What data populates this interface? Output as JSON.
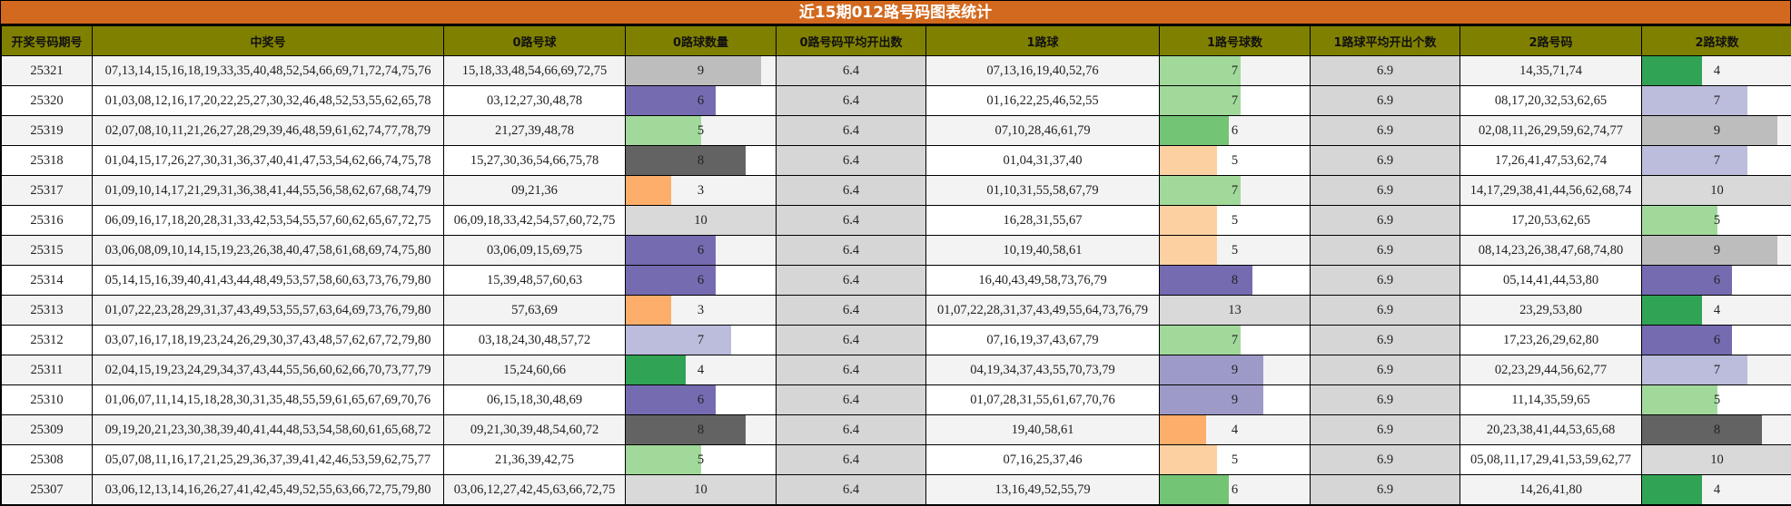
{
  "title": "近15期012路号码图表统计",
  "headers": [
    "开奖号码期号",
    "中奖号",
    "0路号球",
    "0路球数量",
    "0路号码平均开出数",
    "1路球",
    "1路号球数",
    "1路球平均开出个数",
    "2路号码",
    "2路球数"
  ],
  "colors": {
    "title_bg": "#d2691e",
    "header_bg": "#808000",
    "avg_bg": "#d6d6d6",
    "row_odd": "#f3f3f3",
    "row_even": "#ffffff"
  },
  "bar_max": {
    "road0": 10,
    "road1": 13,
    "road2": 10
  },
  "rows": [
    {
      "period": "25321",
      "winning": "07,13,14,15,16,18,19,33,35,40,48,52,54,66,69,71,72,74,75,76",
      "road0": "15,18,33,48,54,66,69,72,75",
      "road0_count": 9,
      "road0_color": "#bdbdbd",
      "road0_avg": "6.4",
      "road1": "07,13,16,19,40,52,76",
      "road1_count": 7,
      "road1_color": "#a1d99b",
      "road1_avg": "6.9",
      "road2": "14,35,71,74",
      "road2_count": 4,
      "road2_color": "#31a354"
    },
    {
      "period": "25320",
      "winning": "01,03,08,12,16,17,20,22,25,27,30,32,46,48,52,53,55,62,65,78",
      "road0": "03,12,27,30,48,78",
      "road0_count": 6,
      "road0_color": "#756bb1",
      "road0_avg": "6.4",
      "road1": "01,16,22,25,46,52,55",
      "road1_count": 7,
      "road1_color": "#a1d99b",
      "road1_avg": "6.9",
      "road2": "08,17,20,32,53,62,65",
      "road2_count": 7,
      "road2_color": "#bcbddc"
    },
    {
      "period": "25319",
      "winning": "02,07,08,10,11,21,26,27,28,29,39,46,48,59,61,62,74,77,78,79",
      "road0": "21,27,39,48,78",
      "road0_count": 5,
      "road0_color": "#a1d99b",
      "road0_avg": "6.4",
      "road1": "07,10,28,46,61,79",
      "road1_count": 6,
      "road1_color": "#74c476",
      "road1_avg": "6.9",
      "road2": "02,08,11,26,29,59,62,74,77",
      "road2_count": 9,
      "road2_color": "#bdbdbd"
    },
    {
      "period": "25318",
      "winning": "01,04,15,17,26,27,30,31,36,37,40,41,47,53,54,62,66,74,75,78",
      "road0": "15,27,30,36,54,66,75,78",
      "road0_count": 8,
      "road0_color": "#636363",
      "road0_avg": "6.4",
      "road1": "01,04,31,37,40",
      "road1_count": 5,
      "road1_color": "#fdd0a2",
      "road1_avg": "6.9",
      "road2": "17,26,41,47,53,62,74",
      "road2_count": 7,
      "road2_color": "#bcbddc"
    },
    {
      "period": "25317",
      "winning": "01,09,10,14,17,21,29,31,36,38,41,44,55,56,58,62,67,68,74,79",
      "road0": "09,21,36",
      "road0_count": 3,
      "road0_color": "#fdae6b",
      "road0_avg": "6.4",
      "road1": "01,10,31,55,58,67,79",
      "road1_count": 7,
      "road1_color": "#a1d99b",
      "road1_avg": "6.9",
      "road2": "14,17,29,38,41,44,56,62,68,74",
      "road2_count": 10,
      "road2_color": "#d9d9d9"
    },
    {
      "period": "25316",
      "winning": "06,09,16,17,18,20,28,31,33,42,53,54,55,57,60,62,65,67,72,75",
      "road0": "06,09,18,33,42,54,57,60,72,75",
      "road0_count": 10,
      "road0_color": "#d9d9d9",
      "road0_avg": "6.4",
      "road1": "16,28,31,55,67",
      "road1_count": 5,
      "road1_color": "#fdd0a2",
      "road1_avg": "6.9",
      "road2": "17,20,53,62,65",
      "road2_count": 5,
      "road2_color": "#a1d99b"
    },
    {
      "period": "25315",
      "winning": "03,06,08,09,10,14,15,19,23,26,38,40,47,58,61,68,69,74,75,80",
      "road0": "03,06,09,15,69,75",
      "road0_count": 6,
      "road0_color": "#756bb1",
      "road0_avg": "6.4",
      "road1": "10,19,40,58,61",
      "road1_count": 5,
      "road1_color": "#fdd0a2",
      "road1_avg": "6.9",
      "road2": "08,14,23,26,38,47,68,74,80",
      "road2_count": 9,
      "road2_color": "#bdbdbd"
    },
    {
      "period": "25314",
      "winning": "05,14,15,16,39,40,41,43,44,48,49,53,57,58,60,63,73,76,79,80",
      "road0": "15,39,48,57,60,63",
      "road0_count": 6,
      "road0_color": "#756bb1",
      "road0_avg": "6.4",
      "road1": "16,40,43,49,58,73,76,79",
      "road1_count": 8,
      "road1_color": "#756bb1",
      "road1_avg": "6.9",
      "road2": "05,14,41,44,53,80",
      "road2_count": 6,
      "road2_color": "#756bb1"
    },
    {
      "period": "25313",
      "winning": "01,07,22,23,28,29,31,37,43,49,53,55,57,63,64,69,73,76,79,80",
      "road0": "57,63,69",
      "road0_count": 3,
      "road0_color": "#fdae6b",
      "road0_avg": "6.4",
      "road1": "01,07,22,28,31,37,43,49,55,64,73,76,79",
      "road1_count": 13,
      "road1_color": "#d9d9d9",
      "road1_avg": "6.9",
      "road2": "23,29,53,80",
      "road2_count": 4,
      "road2_color": "#31a354"
    },
    {
      "period": "25312",
      "winning": "03,07,16,17,18,19,23,24,26,29,30,37,43,48,57,62,67,72,79,80",
      "road0": "03,18,24,30,48,57,72",
      "road0_count": 7,
      "road0_color": "#bcbddc",
      "road0_avg": "6.4",
      "road1": "07,16,19,37,43,67,79",
      "road1_count": 7,
      "road1_color": "#a1d99b",
      "road1_avg": "6.9",
      "road2": "17,23,26,29,62,80",
      "road2_count": 6,
      "road2_color": "#756bb1"
    },
    {
      "period": "25311",
      "winning": "02,04,15,19,23,24,29,34,37,43,44,55,56,60,62,66,70,73,77,79",
      "road0": "15,24,60,66",
      "road0_count": 4,
      "road0_color": "#31a354",
      "road0_avg": "6.4",
      "road1": "04,19,34,37,43,55,70,73,79",
      "road1_count": 9,
      "road1_color": "#9e9ac8",
      "road1_avg": "6.9",
      "road2": "02,23,29,44,56,62,77",
      "road2_count": 7,
      "road2_color": "#bcbddc"
    },
    {
      "period": "25310",
      "winning": "01,06,07,11,14,15,18,28,30,31,35,48,55,59,61,65,67,69,70,76",
      "road0": "06,15,18,30,48,69",
      "road0_count": 6,
      "road0_color": "#756bb1",
      "road0_avg": "6.4",
      "road1": "01,07,28,31,55,61,67,70,76",
      "road1_count": 9,
      "road1_color": "#9e9ac8",
      "road1_avg": "6.9",
      "road2": "11,14,35,59,65",
      "road2_count": 5,
      "road2_color": "#a1d99b"
    },
    {
      "period": "25309",
      "winning": "09,19,20,21,23,30,38,39,40,41,44,48,53,54,58,60,61,65,68,72",
      "road0": "09,21,30,39,48,54,60,72",
      "road0_count": 8,
      "road0_color": "#636363",
      "road0_avg": "6.4",
      "road1": "19,40,58,61",
      "road1_count": 4,
      "road1_color": "#fdae6b",
      "road1_avg": "6.9",
      "road2": "20,23,38,41,44,53,65,68",
      "road2_count": 8,
      "road2_color": "#636363"
    },
    {
      "period": "25308",
      "winning": "05,07,08,11,16,17,21,25,29,36,37,39,41,42,46,53,59,62,75,77",
      "road0": "21,36,39,42,75",
      "road0_count": 5,
      "road0_color": "#a1d99b",
      "road0_avg": "6.4",
      "road1": "07,16,25,37,46",
      "road1_count": 5,
      "road1_color": "#fdd0a2",
      "road1_avg": "6.9",
      "road2": "05,08,11,17,29,41,53,59,62,77",
      "road2_count": 10,
      "road2_color": "#d9d9d9"
    },
    {
      "period": "25307",
      "winning": "03,06,12,13,14,16,26,27,41,42,45,49,52,55,63,66,72,75,79,80",
      "road0": "03,06,12,27,42,45,63,66,72,75",
      "road0_count": 10,
      "road0_color": "#d9d9d9",
      "road0_avg": "6.4",
      "road1": "13,16,49,52,55,79",
      "road1_count": 6,
      "road1_color": "#74c476",
      "road1_avg": "6.9",
      "road2": "14,26,41,80",
      "road2_count": 4,
      "road2_color": "#31a354"
    }
  ]
}
